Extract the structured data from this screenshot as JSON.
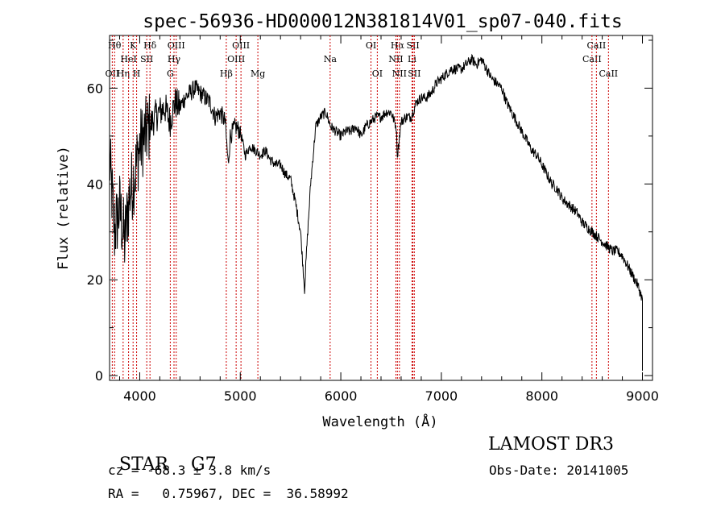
{
  "chart_data": {
    "type": "line",
    "title": "spec-56936-HD000012N381814V01_sp07-040.fits",
    "xlabel": "Wavelength (Å)",
    "ylabel": "Flux (relative)",
    "xlim": [
      3700,
      9100
    ],
    "ylim": [
      -1,
      71
    ],
    "xticks": [
      4000,
      5000,
      6000,
      7000,
      8000,
      9000
    ],
    "yticks": [
      0,
      20,
      40,
      60
    ],
    "grid": false,
    "line_color": "#000000",
    "marker_color": "#cc0000",
    "series": [
      {
        "x": [
          3700,
          3750,
          3800,
          3850,
          3900,
          3950,
          4000,
          4050,
          4100,
          4150,
          4200,
          4250,
          4300,
          4350,
          4400,
          4450,
          4500,
          4550,
          4600,
          4650,
          4700,
          4750,
          4800,
          4850,
          4880,
          4900,
          4950,
          5000,
          5050,
          5100,
          5150,
          5200,
          5250,
          5300,
          5350,
          5400,
          5450,
          5500,
          5550,
          5600,
          5640,
          5660,
          5700,
          5750,
          5800,
          5850,
          5900,
          5950,
          6000,
          6050,
          6100,
          6150,
          6200,
          6250,
          6300,
          6350,
          6400,
          6450,
          6500,
          6550,
          6563,
          6600,
          6650,
          6700,
          6750,
          6800,
          6850,
          6900,
          6950,
          7000,
          7050,
          7100,
          7150,
          7200,
          7250,
          7300,
          7350,
          7400,
          7450,
          7500,
          7550,
          7600,
          7650,
          7700,
          7750,
          7800,
          7850,
          7900,
          7950,
          8000,
          8050,
          8100,
          8150,
          8200,
          8250,
          8300,
          8350,
          8400,
          8450,
          8500,
          8550,
          8600,
          8650,
          8700,
          8750,
          8800,
          8850,
          8900,
          8950,
          9000
        ],
        "y": [
          45,
          30,
          35,
          28,
          38,
          42,
          48,
          50,
          52,
          54,
          55,
          56,
          53,
          57,
          56,
          58,
          59,
          60,
          59,
          58,
          57,
          54,
          55,
          53,
          44,
          50,
          52,
          51,
          46,
          48,
          47,
          46,
          47,
          45,
          44,
          44,
          42,
          41,
          36,
          30,
          18,
          26,
          40,
          52,
          54,
          55,
          52,
          51,
          50,
          51,
          51,
          52,
          50,
          52,
          53,
          54,
          54,
          55,
          55,
          52,
          46,
          53,
          54,
          54,
          57,
          58,
          58,
          59,
          61,
          62,
          63,
          64,
          64,
          64,
          65,
          66,
          65,
          66,
          64,
          62,
          61,
          60,
          57,
          55,
          53,
          51,
          49,
          47,
          46,
          44,
          42,
          40,
          39,
          37,
          36,
          35,
          34,
          32,
          31,
          30,
          29,
          28,
          27,
          26,
          26,
          25,
          23,
          21,
          19,
          16
        ]
      }
    ],
    "lines": [
      {
        "name": "OII",
        "x": 3727,
        "row": 3
      },
      {
        "name": "Hθ",
        "x": 3750,
        "row": 1
      },
      {
        "name": "Hη",
        "x": 3835,
        "row": 3
      },
      {
        "name": "HeI",
        "x": 3889,
        "row": 2
      },
      {
        "name": "K",
        "x": 3934,
        "row": 1
      },
      {
        "name": "H",
        "x": 3969,
        "row": 3
      },
      {
        "name": "SII",
        "x": 4070,
        "row": 2
      },
      {
        "name": "Hδ",
        "x": 4102,
        "row": 1
      },
      {
        "name": "G",
        "x": 4304,
        "row": 3
      },
      {
        "name": "Hγ",
        "x": 4341,
        "row": 2
      },
      {
        "name": "OIII",
        "x": 4363,
        "row": 1
      },
      {
        "name": "Hβ",
        "x": 4861,
        "row": 3
      },
      {
        "name": "OIII",
        "x": 4959,
        "row": 2
      },
      {
        "name": "OIII",
        "x": 5007,
        "row": 1
      },
      {
        "name": "Mg",
        "x": 5175,
        "row": 3
      },
      {
        "name": "Na",
        "x": 5894,
        "row": 2
      },
      {
        "name": "OI",
        "x": 6300,
        "row": 1
      },
      {
        "name": "OI",
        "x": 6363,
        "row": 3
      },
      {
        "name": "NII",
        "x": 6548,
        "row": 2
      },
      {
        "name": "Hα",
        "x": 6563,
        "row": 1
      },
      {
        "name": "NII",
        "x": 6583,
        "row": 3
      },
      {
        "name": "SII",
        "x": 6717,
        "row": 1
      },
      {
        "name": "Li",
        "x": 6708,
        "row": 2
      },
      {
        "name": "SII",
        "x": 6731,
        "row": 3
      },
      {
        "name": "CaII",
        "x": 8498,
        "row": 2
      },
      {
        "name": "CaII",
        "x": 8542,
        "row": 1
      },
      {
        "name": "CaII",
        "x": 8662,
        "row": 3
      }
    ]
  },
  "info": {
    "class_label": "STAR",
    "subclass": "G7",
    "survey": "LAMOST DR3",
    "redshift": "cz = -68.3 ± 3.8 km/s",
    "obs_date": "Obs-Date: 20141005",
    "coords": "RA =   0.75967, DEC =  36.58992"
  }
}
